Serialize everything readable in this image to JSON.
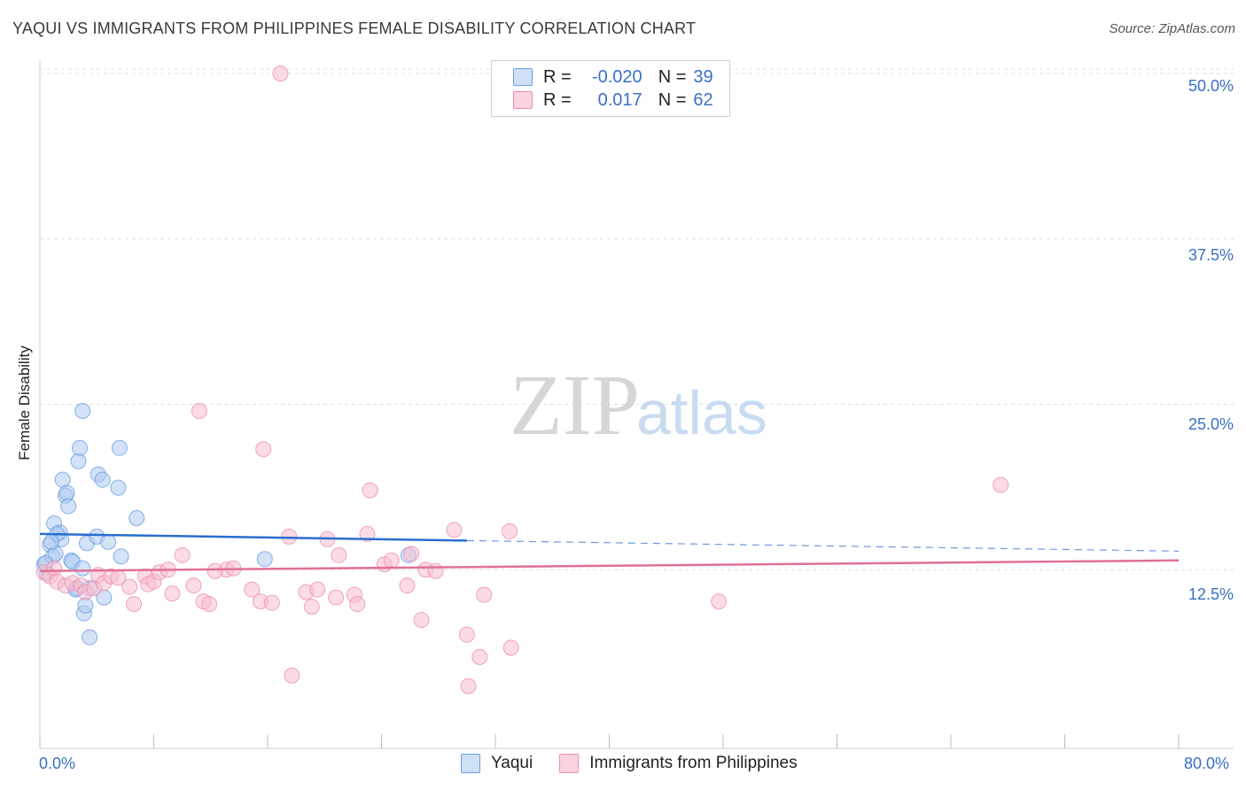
{
  "title": "YAQUI VS IMMIGRANTS FROM PHILIPPINES FEMALE DISABILITY CORRELATION CHART",
  "source": "Source: ZipAtlas.com",
  "watermark": {
    "zip": "ZIP",
    "atlas": "atlas"
  },
  "legend": {
    "rows": [
      {
        "r_label": "R =",
        "r_value": "-0.020",
        "n_label": "N =",
        "n_value": "39",
        "color": "#aecbf0"
      },
      {
        "r_label": "R =",
        "r_value": "0.017",
        "n_label": "N =",
        "n_value": "62",
        "color": "#f7bdd0"
      }
    ]
  },
  "bottom_legend": [
    {
      "label": "Yaqui",
      "color": "#aecbf0"
    },
    {
      "label": "Immigrants from Philippines",
      "color": "#f7bdd0"
    }
  ],
  "chart_data": {
    "type": "scatter",
    "title": "YAQUI VS IMMIGRANTS FROM PHILIPPINES FEMALE DISABILITY CORRELATION CHART",
    "xlabel": "",
    "ylabel": "Female Disability",
    "xlim": [
      0,
      80
    ],
    "ylim": [
      0,
      50
    ],
    "x_tick_labels": [
      "0.0%",
      "80.0%"
    ],
    "y_ticks": [
      12.5,
      25.0,
      37.5,
      50.0
    ],
    "y_tick_labels": [
      "12.5%",
      "25.0%",
      "37.5%",
      "50.0%"
    ],
    "series": [
      {
        "name": "Yaqui",
        "color": "#6a9fe0",
        "fill": "#aecbf0",
        "line_color": "#2a6dcf",
        "trend": {
          "x0": 0,
          "y0": 15.2,
          "x1": 30,
          "y1": 14.7,
          "dash_to_x": 80,
          "dash_y": 13.9
        },
        "points": [
          [
            0.3,
            12.9
          ],
          [
            0.5,
            12.2
          ],
          [
            0.7,
            14.4
          ],
          [
            0.9,
            13.5
          ],
          [
            1.0,
            16.0
          ],
          [
            1.1,
            13.7
          ],
          [
            1.4,
            15.3
          ],
          [
            1.5,
            14.8
          ],
          [
            1.6,
            19.3
          ],
          [
            1.8,
            18.1
          ],
          [
            1.9,
            18.3
          ],
          [
            2.0,
            17.3
          ],
          [
            2.2,
            13.2
          ],
          [
            2.3,
            13.1
          ],
          [
            2.5,
            11.0
          ],
          [
            2.7,
            20.7
          ],
          [
            2.8,
            21.7
          ],
          [
            3.0,
            12.6
          ],
          [
            3.1,
            9.2
          ],
          [
            3.2,
            9.8
          ],
          [
            3.3,
            14.5
          ],
          [
            3.5,
            11.1
          ],
          [
            4.0,
            15.0
          ],
          [
            4.1,
            19.7
          ],
          [
            4.4,
            19.3
          ],
          [
            4.5,
            10.4
          ],
          [
            4.8,
            14.6
          ],
          [
            5.5,
            18.7
          ],
          [
            5.7,
            13.5
          ],
          [
            5.6,
            21.7
          ],
          [
            6.8,
            16.4
          ],
          [
            3.0,
            24.5
          ],
          [
            3.5,
            7.4
          ],
          [
            15.8,
            13.3
          ],
          [
            25.9,
            13.6
          ],
          [
            0.4,
            13.0
          ],
          [
            1.2,
            15.2
          ],
          [
            2.6,
            11.1
          ],
          [
            0.8,
            14.6
          ]
        ]
      },
      {
        "name": "Immigrants from Philippines",
        "color": "#ec8fb0",
        "fill": "#f7bdd0",
        "line_color": "#e07098",
        "trend": {
          "x0": 0,
          "y0": 12.4,
          "x1": 80,
          "y1": 13.2
        },
        "points": [
          [
            0.3,
            12.3
          ],
          [
            0.7,
            12.0
          ],
          [
            1.0,
            12.6
          ],
          [
            1.2,
            11.6
          ],
          [
            1.8,
            11.3
          ],
          [
            2.3,
            11.5
          ],
          [
            2.9,
            11.3
          ],
          [
            3.2,
            10.8
          ],
          [
            3.8,
            11.1
          ],
          [
            4.1,
            12.1
          ],
          [
            4.5,
            11.5
          ],
          [
            5.0,
            12.0
          ],
          [
            5.5,
            11.9
          ],
          [
            6.3,
            11.2
          ],
          [
            6.6,
            9.9
          ],
          [
            7.4,
            12.0
          ],
          [
            7.6,
            11.4
          ],
          [
            8.0,
            11.6
          ],
          [
            8.4,
            12.3
          ],
          [
            9.0,
            12.5
          ],
          [
            9.3,
            10.7
          ],
          [
            10.0,
            13.6
          ],
          [
            10.8,
            11.3
          ],
          [
            11.5,
            10.1
          ],
          [
            11.9,
            9.9
          ],
          [
            13.1,
            12.5
          ],
          [
            13.6,
            12.6
          ],
          [
            14.9,
            11.0
          ],
          [
            15.5,
            10.1
          ],
          [
            16.3,
            10.0
          ],
          [
            17.5,
            15.0
          ],
          [
            18.7,
            10.8
          ],
          [
            19.1,
            9.7
          ],
          [
            19.5,
            11.0
          ],
          [
            20.2,
            14.8
          ],
          [
            20.8,
            10.4
          ],
          [
            21.0,
            13.6
          ],
          [
            22.1,
            10.6
          ],
          [
            22.3,
            9.9
          ],
          [
            23.0,
            15.2
          ],
          [
            23.2,
            18.5
          ],
          [
            24.2,
            12.9
          ],
          [
            24.7,
            13.2
          ],
          [
            25.8,
            11.3
          ],
          [
            26.1,
            13.7
          ],
          [
            26.8,
            8.7
          ],
          [
            27.1,
            12.5
          ],
          [
            27.8,
            12.4
          ],
          [
            29.1,
            15.5
          ],
          [
            30.0,
            7.6
          ],
          [
            30.9,
            5.9
          ],
          [
            31.2,
            10.6
          ],
          [
            33.0,
            15.4
          ],
          [
            33.1,
            6.6
          ],
          [
            17.7,
            4.5
          ],
          [
            30.1,
            3.7
          ],
          [
            11.2,
            24.5
          ],
          [
            15.7,
            21.6
          ],
          [
            16.9,
            50.0
          ],
          [
            47.7,
            10.1
          ],
          [
            67.5,
            18.9
          ],
          [
            12.3,
            12.4
          ]
        ]
      }
    ]
  }
}
